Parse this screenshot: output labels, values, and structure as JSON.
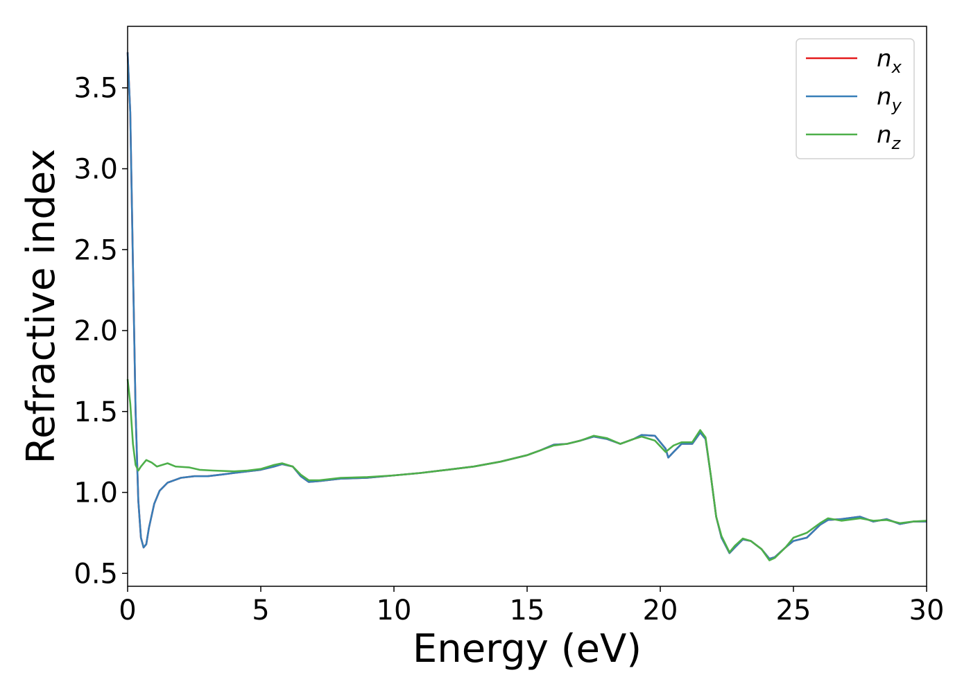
{
  "chart_data": {
    "type": "line",
    "xlabel": "Energy (eV)",
    "ylabel": "Refractive index",
    "xlim": [
      0,
      30
    ],
    "ylim": [
      0.42,
      3.88
    ],
    "xticks": [
      0,
      5,
      10,
      15,
      20,
      25,
      30
    ],
    "yticks": [
      0.5,
      1.0,
      1.5,
      2.0,
      2.5,
      3.0,
      3.5
    ],
    "grid": false,
    "legend_position": "top-right",
    "series": [
      {
        "name": "n_x",
        "label_main": "n",
        "label_sub": "x",
        "color": "#e41a1c",
        "points": [
          [
            0,
            3.72
          ],
          [
            0.1,
            3.35
          ],
          [
            0.2,
            2.4
          ],
          [
            0.3,
            1.5
          ],
          [
            0.4,
            0.95
          ],
          [
            0.5,
            0.72
          ],
          [
            0.6,
            0.66
          ],
          [
            0.7,
            0.68
          ],
          [
            0.8,
            0.78
          ],
          [
            1.0,
            0.93
          ],
          [
            1.2,
            1.01
          ],
          [
            1.5,
            1.06
          ],
          [
            2.0,
            1.09
          ],
          [
            2.5,
            1.1
          ],
          [
            3.0,
            1.1
          ],
          [
            3.5,
            1.11
          ],
          [
            4.0,
            1.12
          ],
          [
            4.5,
            1.13
          ],
          [
            5.0,
            1.14
          ],
          [
            5.5,
            1.16
          ],
          [
            5.8,
            1.175
          ],
          [
            6.2,
            1.16
          ],
          [
            6.5,
            1.1
          ],
          [
            6.8,
            1.065
          ],
          [
            7.2,
            1.07
          ],
          [
            8.0,
            1.085
          ],
          [
            9.0,
            1.09
          ],
          [
            10,
            1.105
          ],
          [
            11,
            1.12
          ],
          [
            12,
            1.14
          ],
          [
            13,
            1.16
          ],
          [
            14,
            1.19
          ],
          [
            15,
            1.23
          ],
          [
            15.5,
            1.26
          ],
          [
            16,
            1.295
          ],
          [
            16.5,
            1.3
          ],
          [
            17,
            1.32
          ],
          [
            17.5,
            1.345
          ],
          [
            18,
            1.33
          ],
          [
            18.5,
            1.3
          ],
          [
            19,
            1.33
          ],
          [
            19.3,
            1.355
          ],
          [
            19.8,
            1.35
          ],
          [
            20.2,
            1.27
          ],
          [
            20.3,
            1.215
          ],
          [
            20.5,
            1.25
          ],
          [
            20.8,
            1.3
          ],
          [
            21.2,
            1.3
          ],
          [
            21.5,
            1.37
          ],
          [
            21.7,
            1.33
          ],
          [
            21.9,
            1.1
          ],
          [
            22.1,
            0.85
          ],
          [
            22.3,
            0.72
          ],
          [
            22.6,
            0.625
          ],
          [
            22.8,
            0.66
          ],
          [
            23.1,
            0.71
          ],
          [
            23.4,
            0.7
          ],
          [
            23.8,
            0.65
          ],
          [
            24.1,
            0.59
          ],
          [
            24.3,
            0.6
          ],
          [
            24.7,
            0.66
          ],
          [
            25.0,
            0.7
          ],
          [
            25.5,
            0.72
          ],
          [
            26.0,
            0.8
          ],
          [
            26.3,
            0.83
          ],
          [
            26.8,
            0.835
          ],
          [
            27.5,
            0.85
          ],
          [
            28.0,
            0.82
          ],
          [
            28.5,
            0.835
          ],
          [
            29.0,
            0.805
          ],
          [
            29.5,
            0.82
          ],
          [
            30,
            0.82
          ]
        ]
      },
      {
        "name": "n_y",
        "label_main": "n",
        "label_sub": "y",
        "color": "#377eb8",
        "points": [
          [
            0,
            3.72
          ],
          [
            0.1,
            3.35
          ],
          [
            0.2,
            2.4
          ],
          [
            0.3,
            1.5
          ],
          [
            0.4,
            0.95
          ],
          [
            0.5,
            0.72
          ],
          [
            0.6,
            0.66
          ],
          [
            0.7,
            0.68
          ],
          [
            0.8,
            0.78
          ],
          [
            1.0,
            0.93
          ],
          [
            1.2,
            1.01
          ],
          [
            1.5,
            1.06
          ],
          [
            2.0,
            1.09
          ],
          [
            2.5,
            1.1
          ],
          [
            3.0,
            1.1
          ],
          [
            3.5,
            1.11
          ],
          [
            4.0,
            1.12
          ],
          [
            4.5,
            1.13
          ],
          [
            5.0,
            1.14
          ],
          [
            5.5,
            1.16
          ],
          [
            5.8,
            1.175
          ],
          [
            6.2,
            1.16
          ],
          [
            6.5,
            1.1
          ],
          [
            6.8,
            1.065
          ],
          [
            7.2,
            1.07
          ],
          [
            8.0,
            1.085
          ],
          [
            9.0,
            1.09
          ],
          [
            10,
            1.105
          ],
          [
            11,
            1.12
          ],
          [
            12,
            1.14
          ],
          [
            13,
            1.16
          ],
          [
            14,
            1.19
          ],
          [
            15,
            1.23
          ],
          [
            15.5,
            1.26
          ],
          [
            16,
            1.295
          ],
          [
            16.5,
            1.3
          ],
          [
            17,
            1.32
          ],
          [
            17.5,
            1.345
          ],
          [
            18,
            1.33
          ],
          [
            18.5,
            1.3
          ],
          [
            19,
            1.33
          ],
          [
            19.3,
            1.355
          ],
          [
            19.8,
            1.35
          ],
          [
            20.2,
            1.27
          ],
          [
            20.3,
            1.215
          ],
          [
            20.5,
            1.25
          ],
          [
            20.8,
            1.3
          ],
          [
            21.2,
            1.3
          ],
          [
            21.5,
            1.37
          ],
          [
            21.7,
            1.33
          ],
          [
            21.9,
            1.1
          ],
          [
            22.1,
            0.85
          ],
          [
            22.3,
            0.72
          ],
          [
            22.6,
            0.625
          ],
          [
            22.8,
            0.66
          ],
          [
            23.1,
            0.71
          ],
          [
            23.4,
            0.7
          ],
          [
            23.8,
            0.65
          ],
          [
            24.1,
            0.59
          ],
          [
            24.3,
            0.6
          ],
          [
            24.7,
            0.66
          ],
          [
            25.0,
            0.7
          ],
          [
            25.5,
            0.72
          ],
          [
            26.0,
            0.8
          ],
          [
            26.3,
            0.83
          ],
          [
            26.8,
            0.835
          ],
          [
            27.5,
            0.85
          ],
          [
            28.0,
            0.82
          ],
          [
            28.5,
            0.835
          ],
          [
            29.0,
            0.805
          ],
          [
            29.5,
            0.82
          ],
          [
            30,
            0.82
          ]
        ]
      },
      {
        "name": "n_z",
        "label_main": "n",
        "label_sub": "z",
        "color": "#4daf4a",
        "points": [
          [
            0,
            1.7
          ],
          [
            0.1,
            1.55
          ],
          [
            0.2,
            1.3
          ],
          [
            0.3,
            1.17
          ],
          [
            0.4,
            1.135
          ],
          [
            0.5,
            1.16
          ],
          [
            0.7,
            1.2
          ],
          [
            0.9,
            1.185
          ],
          [
            1.1,
            1.16
          ],
          [
            1.5,
            1.18
          ],
          [
            1.8,
            1.16
          ],
          [
            2.3,
            1.155
          ],
          [
            2.7,
            1.14
          ],
          [
            3.2,
            1.135
          ],
          [
            4.0,
            1.13
          ],
          [
            4.5,
            1.135
          ],
          [
            5.0,
            1.145
          ],
          [
            5.5,
            1.17
          ],
          [
            5.8,
            1.18
          ],
          [
            6.2,
            1.16
          ],
          [
            6.5,
            1.11
          ],
          [
            6.8,
            1.075
          ],
          [
            7.2,
            1.075
          ],
          [
            8.0,
            1.09
          ],
          [
            9.0,
            1.095
          ],
          [
            10,
            1.105
          ],
          [
            11,
            1.12
          ],
          [
            12,
            1.14
          ],
          [
            13,
            1.16
          ],
          [
            14,
            1.19
          ],
          [
            15,
            1.23
          ],
          [
            15.5,
            1.26
          ],
          [
            16,
            1.29
          ],
          [
            16.5,
            1.3
          ],
          [
            17,
            1.32
          ],
          [
            17.5,
            1.35
          ],
          [
            18,
            1.335
          ],
          [
            18.5,
            1.3
          ],
          [
            19,
            1.33
          ],
          [
            19.3,
            1.345
          ],
          [
            19.8,
            1.32
          ],
          [
            20.2,
            1.25
          ],
          [
            20.5,
            1.29
          ],
          [
            20.8,
            1.31
          ],
          [
            21.2,
            1.31
          ],
          [
            21.5,
            1.385
          ],
          [
            21.7,
            1.34
          ],
          [
            21.9,
            1.1
          ],
          [
            22.1,
            0.85
          ],
          [
            22.3,
            0.73
          ],
          [
            22.6,
            0.63
          ],
          [
            22.8,
            0.67
          ],
          [
            23.1,
            0.715
          ],
          [
            23.4,
            0.7
          ],
          [
            23.8,
            0.65
          ],
          [
            24.1,
            0.58
          ],
          [
            24.3,
            0.595
          ],
          [
            24.7,
            0.66
          ],
          [
            25.0,
            0.72
          ],
          [
            25.5,
            0.75
          ],
          [
            26.0,
            0.81
          ],
          [
            26.3,
            0.84
          ],
          [
            26.8,
            0.825
          ],
          [
            27.5,
            0.84
          ],
          [
            28.0,
            0.825
          ],
          [
            28.5,
            0.83
          ],
          [
            29.0,
            0.81
          ],
          [
            29.5,
            0.82
          ],
          [
            30,
            0.825
          ]
        ]
      }
    ]
  }
}
